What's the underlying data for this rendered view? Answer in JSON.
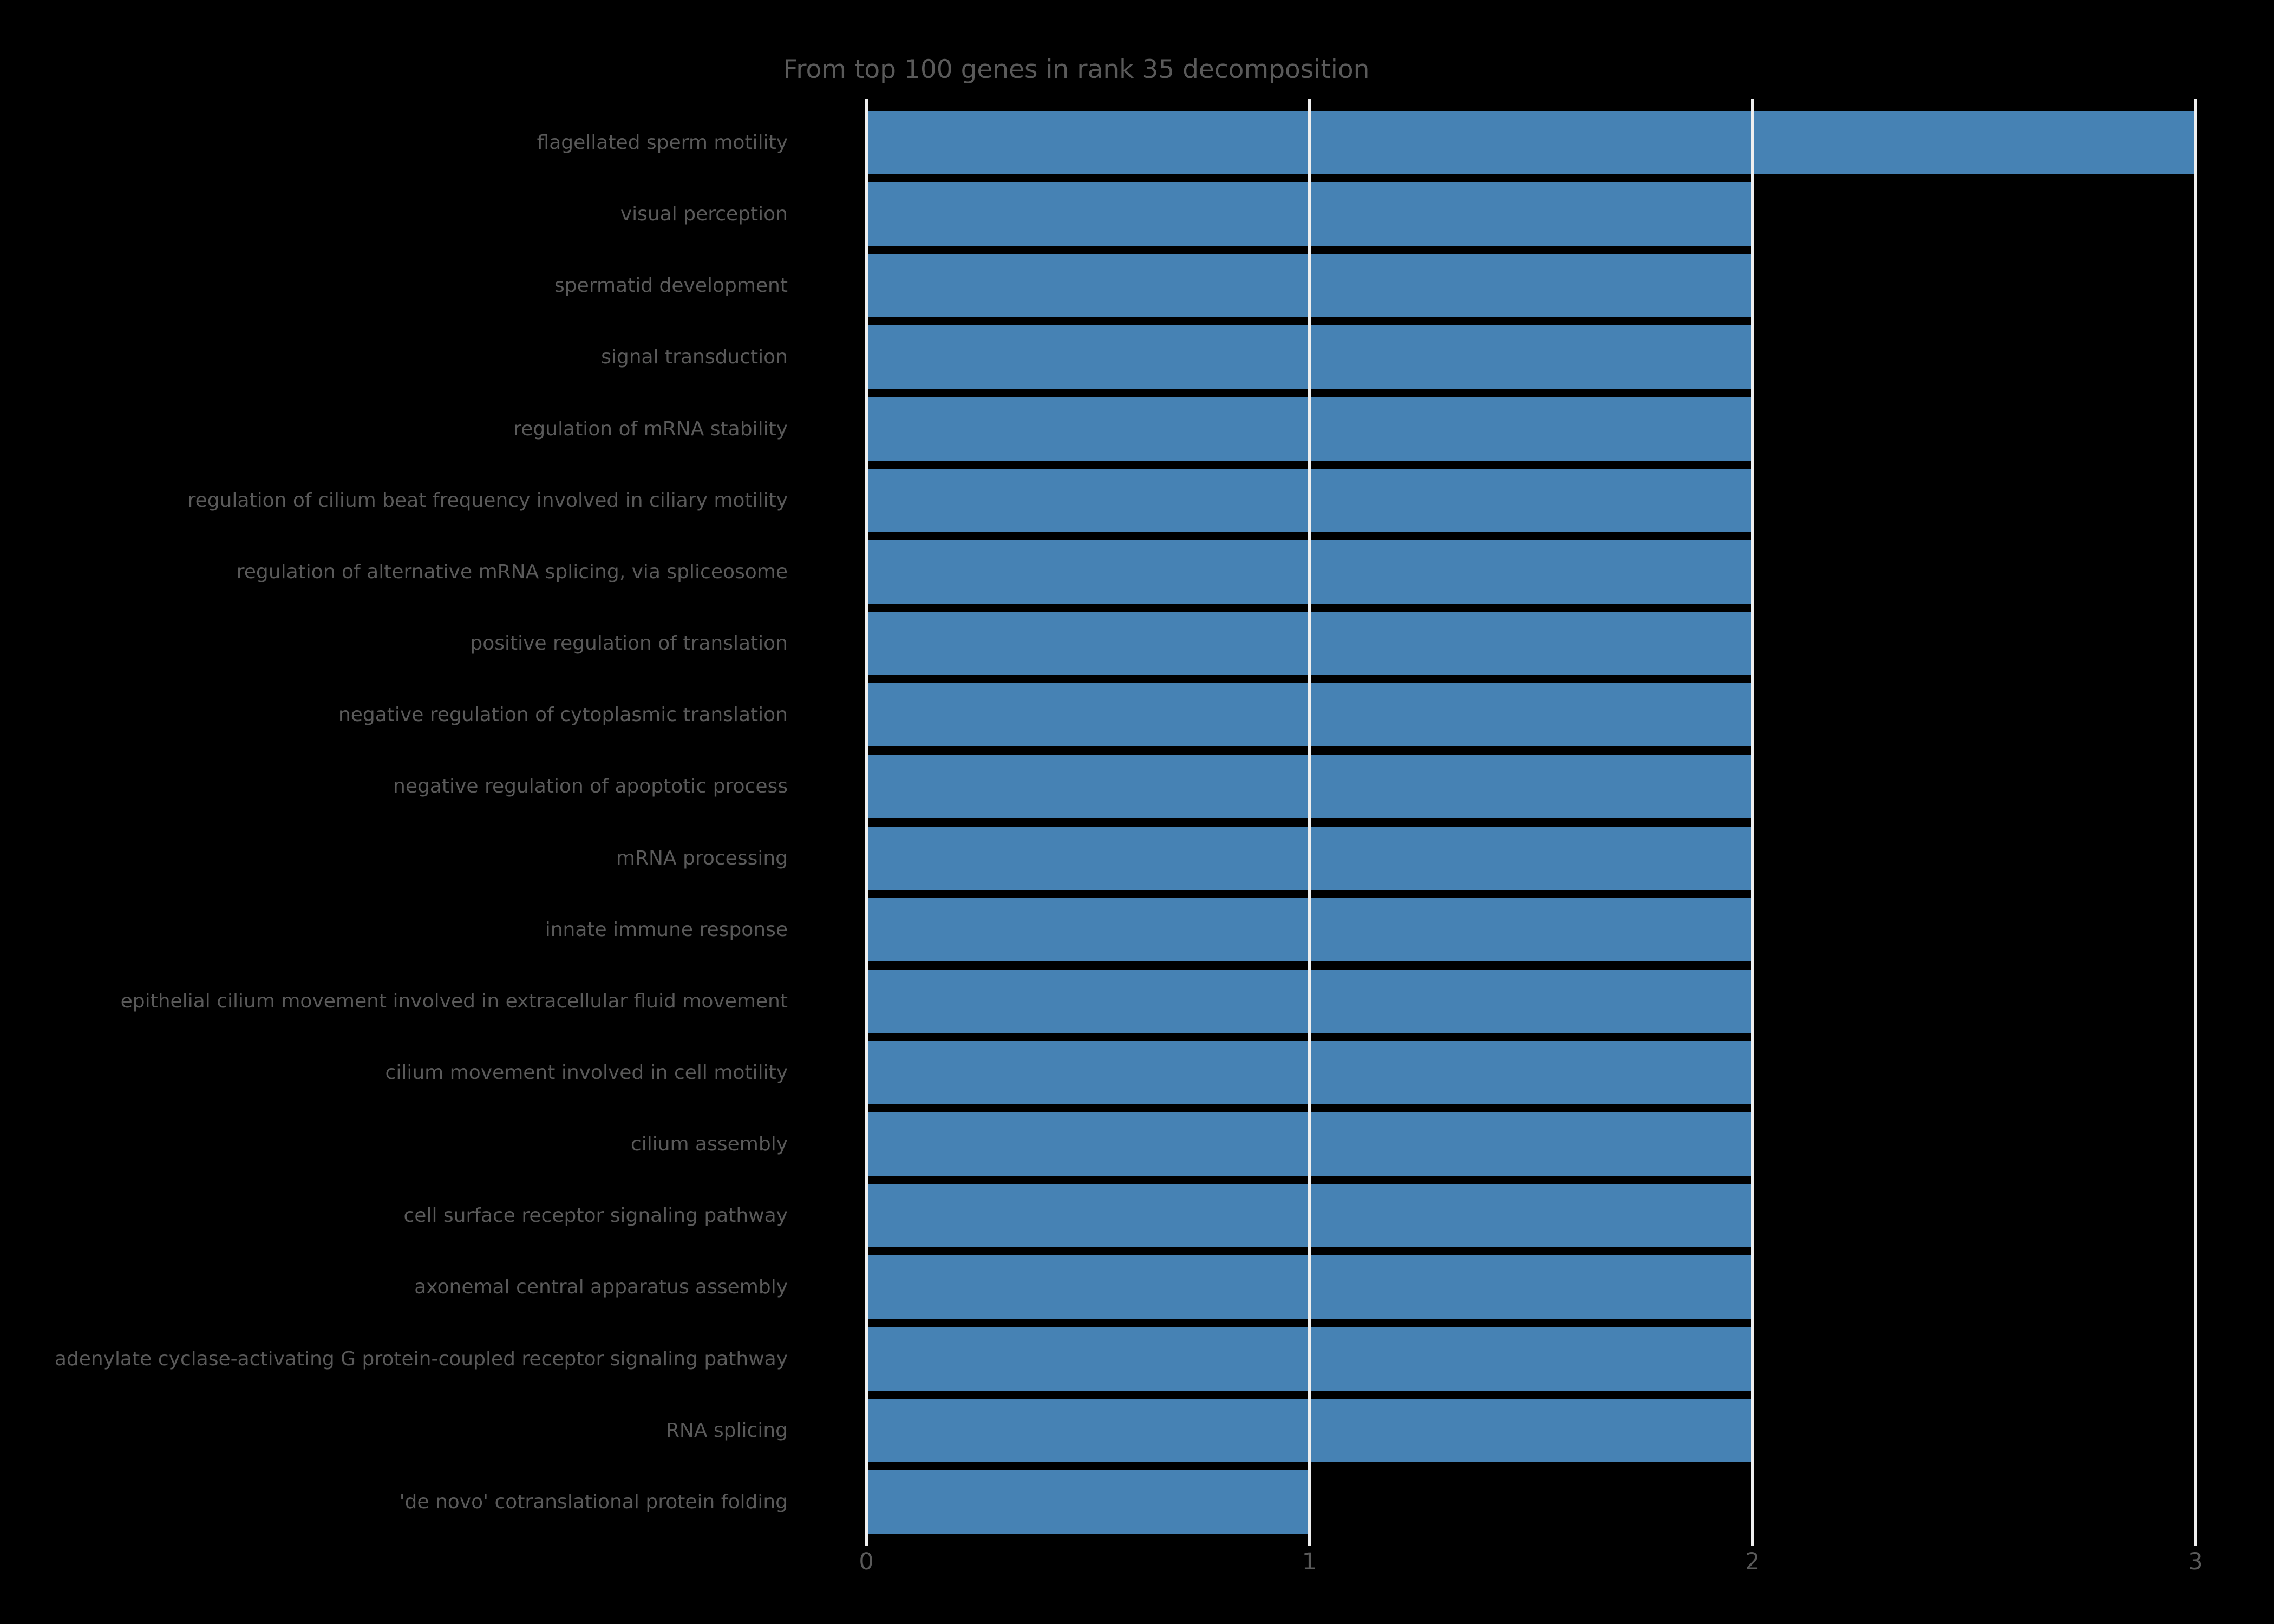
{
  "chart_data": {
    "type": "bar",
    "orientation": "horizontal",
    "title": "From top 100 genes in rank 35 decomposition",
    "categories": [
      "flagellated sperm motility",
      "visual perception",
      "spermatid development",
      "signal transduction",
      "regulation of mRNA stability",
      "regulation of cilium beat frequency involved in ciliary motility",
      "regulation of alternative mRNA splicing, via spliceosome",
      "positive regulation of translation",
      "negative regulation of cytoplasmic translation",
      "negative regulation of apoptotic process",
      "mRNA processing",
      "innate immune response",
      "epithelial cilium movement involved in extracellular fluid movement",
      "cilium movement involved in cell motility",
      "cilium assembly",
      "cell surface receptor signaling pathway",
      "axonemal central apparatus assembly",
      "adenylate cyclase-activating G protein-coupled receptor signaling pathway",
      "RNA splicing",
      "'de novo' cotranslational protein folding"
    ],
    "values": [
      3,
      2,
      2,
      2,
      2,
      2,
      2,
      2,
      2,
      2,
      2,
      2,
      2,
      2,
      2,
      2,
      2,
      2,
      2,
      1
    ],
    "xlabel": "",
    "ylabel": "",
    "xlim": [
      0,
      3
    ],
    "xticks": [
      "0",
      "1",
      "2",
      "3"
    ],
    "grid": true,
    "legend": false,
    "colors": {
      "bar": "#4682b4",
      "background": "#000000",
      "text": "#5a5a5a",
      "gridline": "#efefef"
    }
  }
}
